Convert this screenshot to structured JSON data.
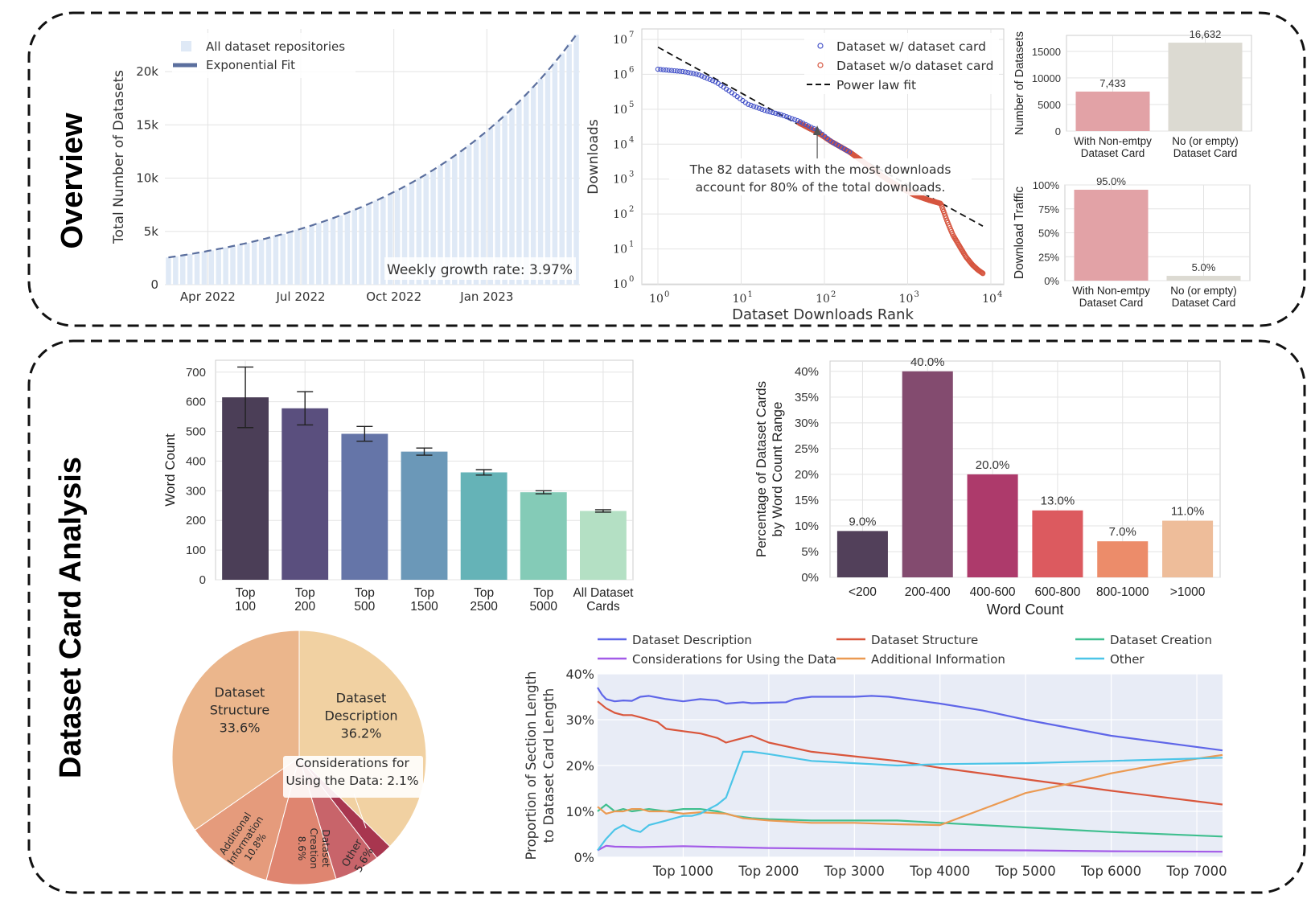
{
  "sections": {
    "overview_label": "Overview",
    "analysis_label": "Dataset Card Analysis"
  },
  "colors": {
    "growth_bar": "#dfe9f6",
    "fit_line": "#5b6f9e",
    "scatter_with": "#4452c8",
    "scatter_without": "#d6553f",
    "card_bar_with": "#e2a2a6",
    "card_bar_without": "#dcdad2",
    "grid": "#e3e3e3",
    "line_plot_bg": "#e8ecf6"
  },
  "chart_data": [
    {
      "id": "growth",
      "type": "bar",
      "title": "",
      "xlabel": "",
      "ylabel": "Total Number of Datasets",
      "ylim": [
        0,
        24000
      ],
      "yticks": [
        0,
        5000,
        10000,
        15000,
        20000
      ],
      "ytick_labels": [
        "0",
        "5k",
        "10k",
        "15k",
        "20k"
      ],
      "x_tick_labels": [
        "Apr 2022",
        "Jul 2022",
        "Oct 2022",
        "Jan 2023"
      ],
      "x_tick_weeks": [
        5.5,
        18.5,
        31.5,
        44.5
      ],
      "n_weeks": 58,
      "start_value": 2550,
      "weekly_growth": 0.0397,
      "legend": [
        "All dataset repositories",
        "Exponential Fit"
      ],
      "annotation": "Weekly growth rate: 3.97%"
    },
    {
      "id": "downloads",
      "type": "scatter",
      "xscale": "log",
      "yscale": "log",
      "xlabel": "Dataset Downloads Rank",
      "ylabel": "Downloads",
      "xlim": [
        1,
        10000
      ],
      "ylim": [
        1,
        10000000
      ],
      "x_tick_exponents": [
        "0",
        "1",
        "2",
        "3",
        "4"
      ],
      "y_tick_exponents": [
        "0",
        "1",
        "2",
        "3",
        "4",
        "5",
        "6",
        "7"
      ],
      "tick_base": "10",
      "legend": [
        "Dataset w/ dataset card",
        "Dataset w/o dataset card",
        "Power law fit"
      ],
      "annotation": [
        "The 82 datasets with the most downloads",
        "account for 80% of the total downloads."
      ],
      "annotation_rank": 82,
      "power_law": {
        "x": [
          1,
          8000
        ],
        "y": [
          6000000,
          45
        ]
      },
      "curve_with_card": {
        "ranks": [
          1,
          2,
          3,
          5,
          8,
          12,
          20,
          30,
          50,
          82,
          120,
          200
        ],
        "downloads": [
          1400000,
          1200000,
          1000000,
          600000,
          280000,
          140000,
          90000,
          70000,
          45000,
          25000,
          12000,
          6000
        ]
      },
      "curve_without_card": {
        "ranks": [
          50,
          82,
          120,
          200,
          300,
          500,
          800,
          1200,
          1800,
          2500,
          3000,
          3500,
          4200,
          5000,
          6000,
          7000,
          8000
        ],
        "downloads": [
          40000,
          22000,
          12000,
          6000,
          3000,
          1200,
          600,
          350,
          250,
          200,
          60,
          25,
          12,
          6,
          3.5,
          2.5,
          2
        ]
      }
    },
    {
      "id": "card_counts",
      "type": "bar",
      "ylabel": "Number of Datasets",
      "ylim": [
        0,
        18000
      ],
      "yticks": [
        0,
        5000,
        10000,
        15000
      ],
      "categories": [
        [
          "With Non-emtpy",
          "Dataset Card"
        ],
        [
          "No (or empty)",
          "Dataset Card"
        ]
      ],
      "values": [
        7433,
        16632
      ],
      "value_labels": [
        "7,433",
        "16,632"
      ]
    },
    {
      "id": "download_traffic",
      "type": "bar",
      "ylabel": "Download Traffic",
      "ylim": [
        0,
        100
      ],
      "yticks": [
        0,
        25,
        50,
        75,
        100
      ],
      "ytick_labels": [
        "0%",
        "25%",
        "50%",
        "75%",
        "100%"
      ],
      "categories": [
        [
          "With Non-emtpy",
          "Dataset Card"
        ],
        [
          "No (or empty)",
          "Dataset Card"
        ]
      ],
      "values": [
        95.0,
        5.0
      ],
      "value_labels": [
        "95.0%",
        "5.0%"
      ]
    },
    {
      "id": "word_count",
      "type": "bar",
      "ylabel": "Word Count",
      "ylim": [
        0,
        740
      ],
      "yticks": [
        0,
        100,
        200,
        300,
        400,
        500,
        600,
        700
      ],
      "categories": [
        [
          "Top",
          "100"
        ],
        [
          "Top",
          "200"
        ],
        [
          "Top",
          "500"
        ],
        [
          "Top",
          "1500"
        ],
        [
          "Top",
          "2500"
        ],
        [
          "Top",
          "5000"
        ],
        [
          "All Dataset",
          "Cards"
        ]
      ],
      "values": [
        615,
        578,
        492,
        432,
        362,
        295,
        232
      ],
      "errors": [
        102,
        56,
        25,
        12,
        9,
        5,
        4
      ],
      "colors": [
        "#4b3e57",
        "#5a4f7e",
        "#6575a8",
        "#6b98b8",
        "#65b3b7",
        "#84cbb7",
        "#b4e0c4"
      ]
    },
    {
      "id": "word_range",
      "type": "bar",
      "title": "",
      "xlabel": "Word Count",
      "ylabel": [
        "Percentage of Dataset Cards",
        "by Word Count Range"
      ],
      "ylim": [
        0,
        42
      ],
      "yticks": [
        0,
        5,
        10,
        15,
        20,
        25,
        30,
        35,
        40
      ],
      "ytick_labels": [
        "0%",
        "5%",
        "10%",
        "15%",
        "20%",
        "25%",
        "30%",
        "35%",
        "40%"
      ],
      "categories": [
        "<200",
        "200-400",
        "400-600",
        "600-800",
        "800-1000",
        ">1000"
      ],
      "values": [
        9.0,
        40.0,
        20.0,
        13.0,
        7.0,
        11.0
      ],
      "value_labels": [
        "9.0%",
        "40.0%",
        "20.0%",
        "13.0%",
        "7.0%",
        "11.0%"
      ],
      "colors": [
        "#52405a",
        "#834b6f",
        "#ad3a6b",
        "#dc5a5f",
        "#ec8c6a",
        "#eebd9a"
      ]
    },
    {
      "id": "sections_pie",
      "type": "pie",
      "slices": [
        {
          "label": [
            "Dataset",
            "Description",
            "36.2%"
          ],
          "value": 36.2,
          "color": "#f1d1a2"
        },
        {
          "label": [
            "Considerations for",
            "Using the Data: 2.1%"
          ],
          "value": 2.1,
          "color": "#a8364f"
        },
        {
          "label": [
            "Other",
            "5.6%"
          ],
          "value": 5.6,
          "color": "#c8646a"
        },
        {
          "label": [
            "Dataset",
            "Creation",
            "8.6%"
          ],
          "value": 8.6,
          "color": "#df8570"
        },
        {
          "label": [
            "Additional",
            "Information",
            "10.8%"
          ],
          "value": 10.8,
          "color": "#e59b7c"
        },
        {
          "label": [
            "Dataset",
            "Structure",
            "33.6%"
          ],
          "value": 33.6,
          "color": "#ebb68c"
        }
      ]
    },
    {
      "id": "section_proportion",
      "type": "line",
      "xlabel": "",
      "ylabel": [
        "Proportion of Section Length",
        "to Dataset Card Length"
      ],
      "ylim": [
        0,
        40
      ],
      "yticks": [
        0,
        10,
        20,
        30,
        40
      ],
      "ytick_labels": [
        "0%",
        "10%",
        "20%",
        "30%",
        "40%"
      ],
      "xlim": [
        0,
        7300
      ],
      "xticks": [
        1000,
        2000,
        3000,
        4000,
        5000,
        6000,
        7000
      ],
      "xtick_labels": [
        "Top 1000",
        "Top 2000",
        "Top 3000",
        "Top 4000",
        "Top 5000",
        "Top 6000",
        "Top 7000"
      ],
      "series": [
        {
          "name": "Dataset Description",
          "color": "#5f66e8",
          "x": [
            0,
            50,
            100,
            200,
            300,
            400,
            500,
            600,
            800,
            1000,
            1200,
            1400,
            1500,
            1700,
            1800,
            2000,
            2200,
            2300,
            2500,
            3000,
            3200,
            3400,
            4000,
            4500,
            5000,
            6000,
            7300
          ],
          "y": [
            37,
            35.5,
            34.5,
            34,
            34.2,
            34.1,
            35,
            35.2,
            34.5,
            34,
            34.5,
            34.2,
            33.5,
            33.8,
            33.6,
            33.7,
            33.8,
            34.5,
            35,
            35,
            35.2,
            35,
            33.5,
            32,
            30,
            26.5,
            23.3
          ]
        },
        {
          "name": "Dataset Structure",
          "color": "#d9563c",
          "x": [
            0,
            100,
            200,
            300,
            400,
            500,
            600,
            700,
            800,
            1000,
            1200,
            1400,
            1500,
            1600,
            1700,
            1800,
            2000,
            2500,
            3000,
            3500,
            4000,
            5000,
            6000,
            7300
          ],
          "y": [
            34,
            32.5,
            31.5,
            31,
            31,
            30.5,
            30,
            29.5,
            28,
            27.5,
            27,
            26,
            25,
            25.5,
            26,
            26.5,
            25,
            23,
            22,
            21,
            19.5,
            17,
            14.5,
            11.5
          ]
        },
        {
          "name": "Dataset Creation",
          "color": "#3fbf8f",
          "x": [
            0,
            100,
            200,
            300,
            400,
            600,
            800,
            1000,
            1200,
            1400,
            1600,
            1800,
            2000,
            2500,
            3000,
            3500,
            4000,
            5000,
            6000,
            7300
          ],
          "y": [
            10,
            11.5,
            10,
            10.5,
            10,
            10.5,
            10,
            10.5,
            10.5,
            10,
            9,
            8.5,
            8.3,
            8,
            8,
            8,
            7.5,
            6.5,
            5.5,
            4.5
          ]
        },
        {
          "name": "Considerations for Using the Data",
          "color": "#a35be8",
          "x": [
            0,
            100,
            200,
            500,
            1000,
            1500,
            2000,
            3000,
            4000,
            5000,
            6000,
            7300
          ],
          "y": [
            1.5,
            2.5,
            2.3,
            2.2,
            2.4,
            2.2,
            2,
            1.8,
            1.6,
            1.5,
            1.3,
            1.2
          ]
        },
        {
          "name": "Additional Information",
          "color": "#eb9a52",
          "x": [
            0,
            100,
            200,
            300,
            400,
            500,
            600,
            800,
            1000,
            1200,
            1500,
            1700,
            2000,
            2500,
            3000,
            3500,
            4000,
            4500,
            5000,
            5500,
            6000,
            6500,
            7000,
            7300
          ],
          "y": [
            11,
            9.5,
            10,
            10,
            10.5,
            10.5,
            10,
            10,
            9.5,
            9.8,
            9.5,
            8.5,
            8,
            7.5,
            7.5,
            7.2,
            7,
            10.5,
            14,
            16,
            18.3,
            20,
            21.5,
            22.3
          ]
        },
        {
          "name": "Other",
          "color": "#4cc5e8",
          "x": [
            0,
            100,
            200,
            300,
            400,
            500,
            600,
            700,
            800,
            900,
            1000,
            1100,
            1200,
            1300,
            1400,
            1500,
            1600,
            1700,
            1800,
            2000,
            2500,
            3000,
            3500,
            4000,
            5000,
            6000,
            7300
          ],
          "y": [
            1.5,
            4,
            6,
            7,
            6,
            5.5,
            7,
            7.5,
            8,
            8.5,
            9,
            9,
            9.5,
            10.5,
            11.5,
            13,
            18,
            23,
            23,
            22.5,
            21,
            20.5,
            20,
            20.3,
            20.5,
            21,
            21.7
          ]
        }
      ]
    }
  ]
}
